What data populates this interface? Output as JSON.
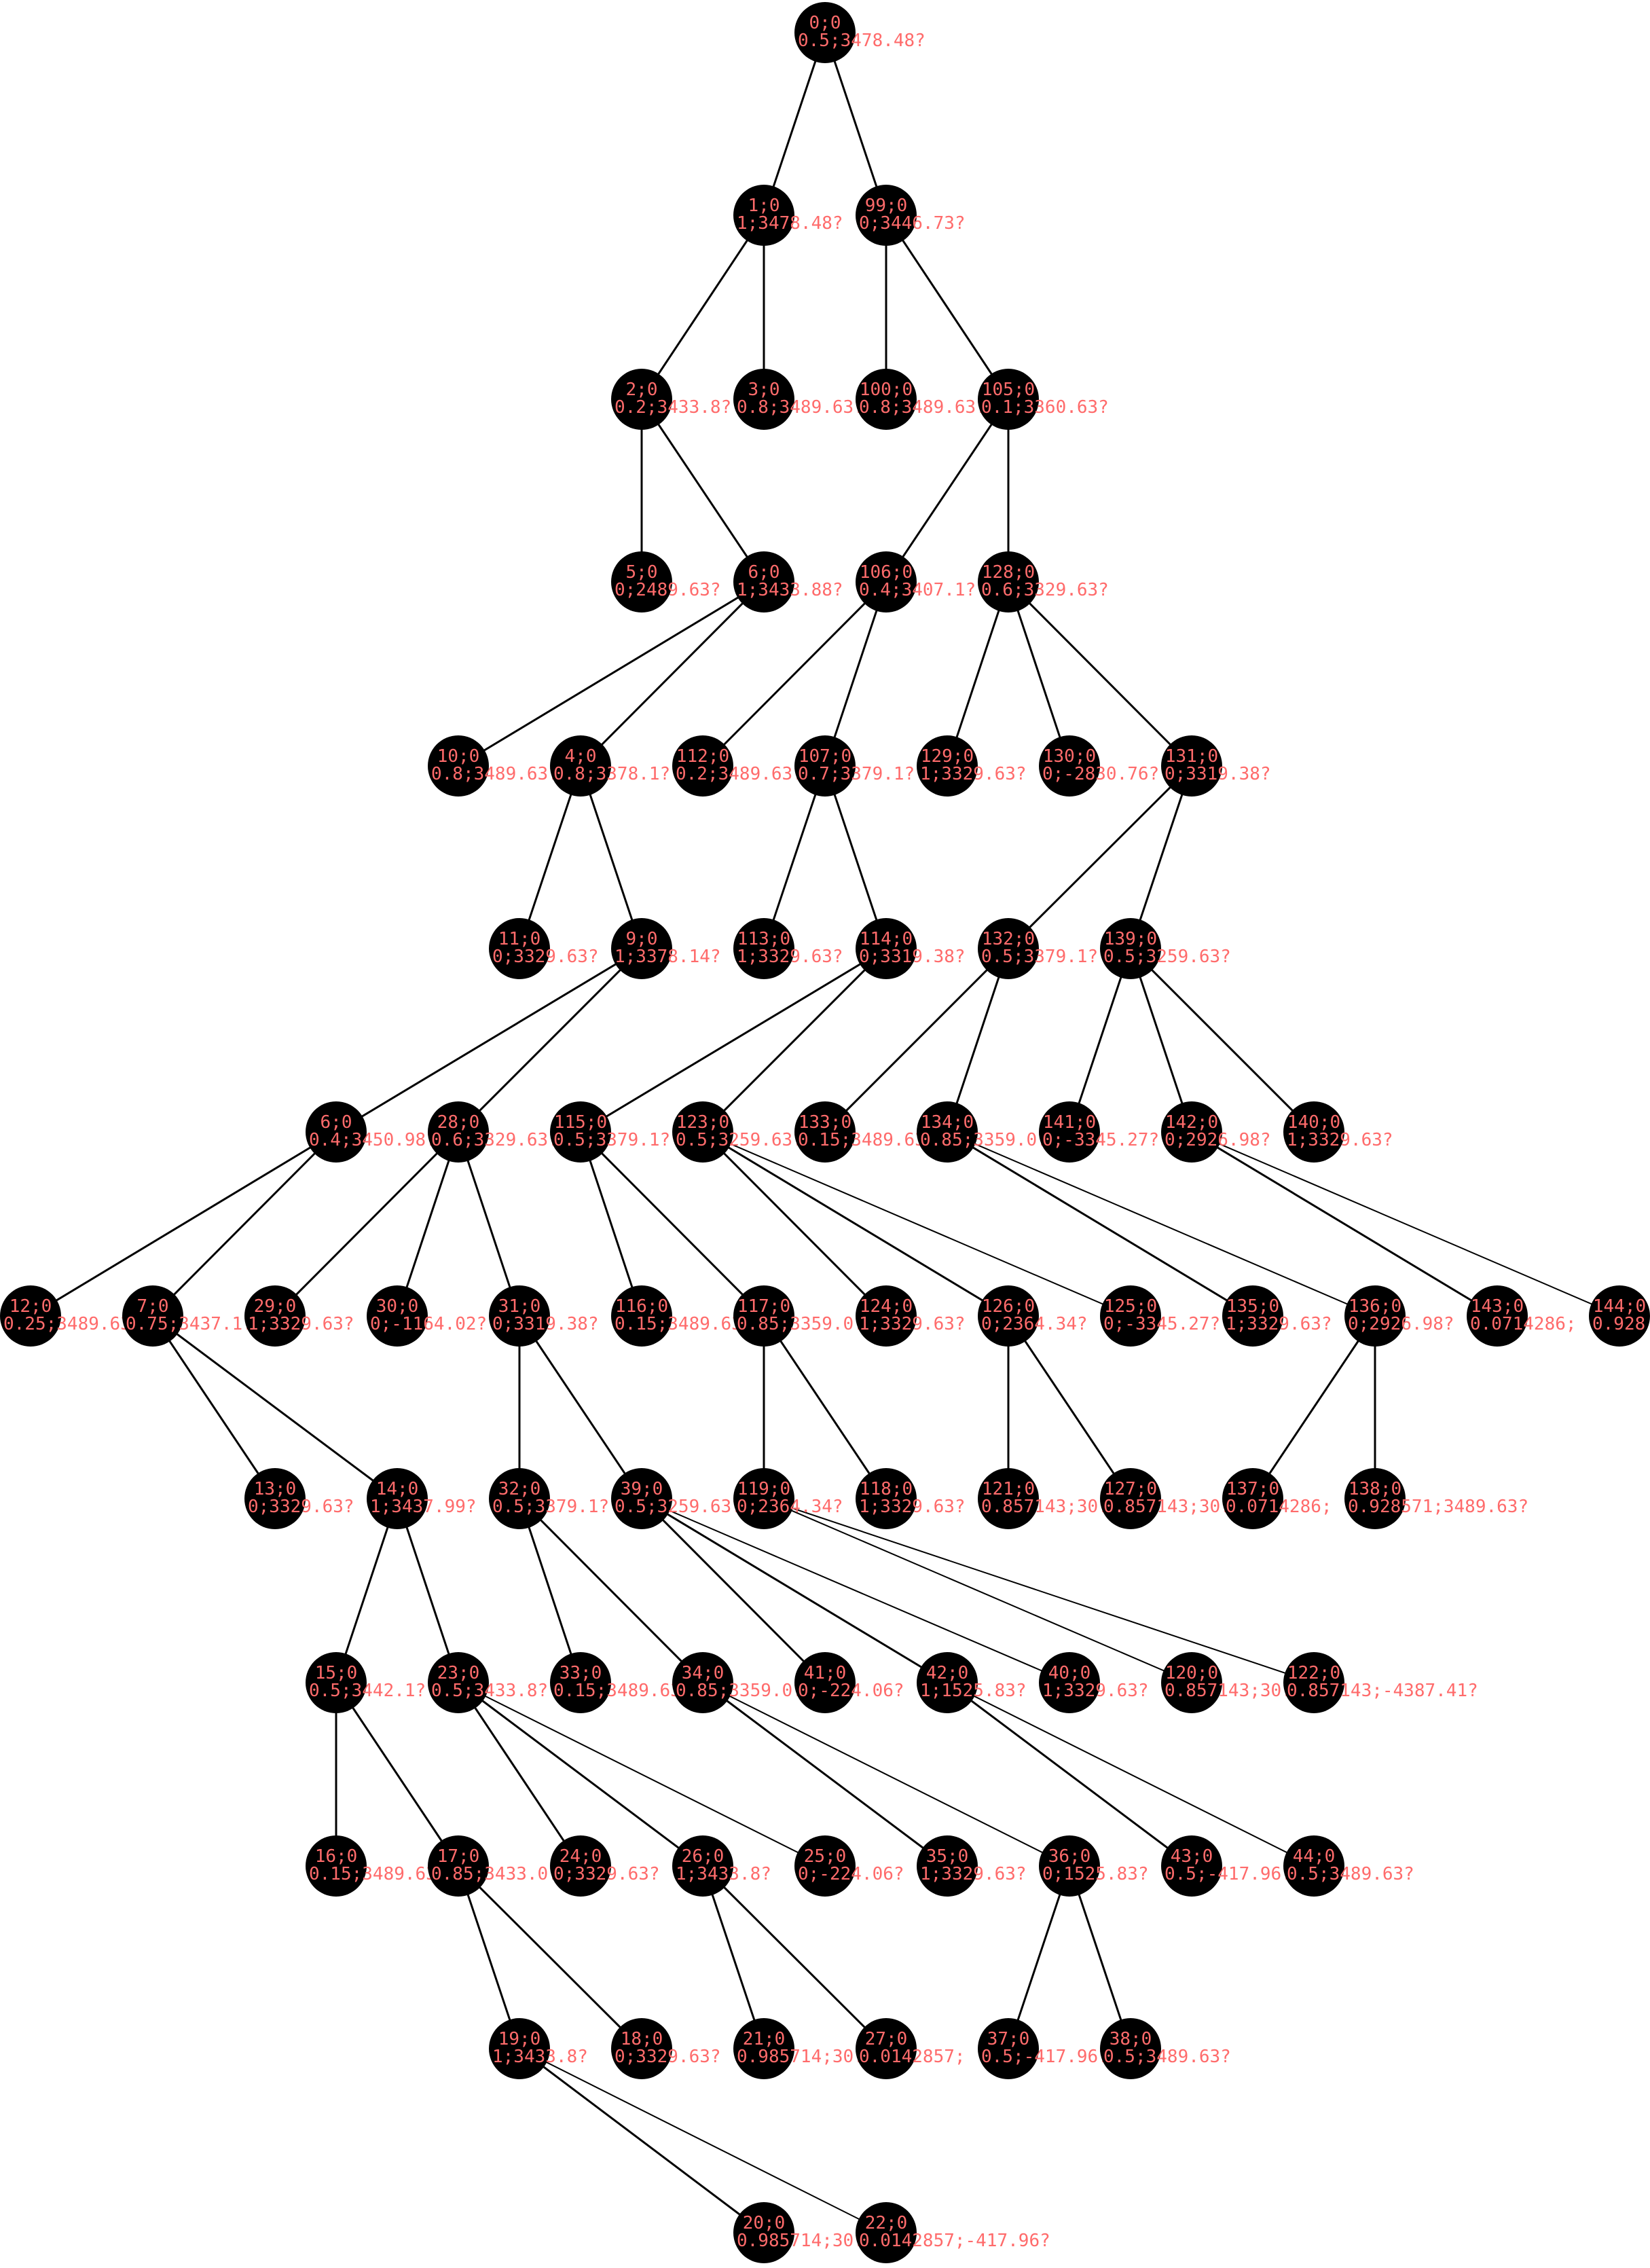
{
  "colors": {
    "background": "#ffffff",
    "node": "#000000",
    "edge": "#000000",
    "label": "#ff6b6b"
  },
  "nodes": [
    {
      "id": "n0",
      "l1": "0;0",
      "l2": "0.5;3478.48?"
    },
    {
      "id": "n1",
      "l1": "1;0",
      "l2": "1;3478.48?"
    },
    {
      "id": "n2",
      "l1": "99;0",
      "l2": "0;3446.73?"
    },
    {
      "id": "n3",
      "l1": "2;0",
      "l2": "0.2;3433.8?"
    },
    {
      "id": "n4",
      "l1": "3;0",
      "l2": "0.8;3489.63?"
    },
    {
      "id": "n5",
      "l1": "100;0",
      "l2": "0.8;3489.63?"
    },
    {
      "id": "n6",
      "l1": "105;0",
      "l2": "0.1;3360.63?"
    },
    {
      "id": "n7",
      "l1": "5;0",
      "l2": "0;2489.63?"
    },
    {
      "id": "n8",
      "l1": "6;0",
      "l2": "1;3433.88?"
    },
    {
      "id": "n9",
      "l1": "106;0",
      "l2": "0.4;3407.1?"
    },
    {
      "id": "n10",
      "l1": "128;0",
      "l2": "0.6;3329.63?"
    },
    {
      "id": "n11",
      "l1": "10;0",
      "l2": "0.8;3489.63?"
    },
    {
      "id": "n12",
      "l1": "4;0",
      "l2": "0.8;3378.1?"
    },
    {
      "id": "n13",
      "l1": "112;0",
      "l2": "0.2;3489.63?"
    },
    {
      "id": "n14",
      "l1": "107;0",
      "l2": "0.7;3379.1?"
    },
    {
      "id": "n15",
      "l1": "129;0",
      "l2": "1;3329.63?"
    },
    {
      "id": "n16",
      "l1": "130;0",
      "l2": "0;-2830.76?"
    },
    {
      "id": "n17",
      "l1": "131;0",
      "l2": "0;3319.38?"
    },
    {
      "id": "n18",
      "l1": "11;0",
      "l2": "0;3329.63?"
    },
    {
      "id": "n19",
      "l1": "9;0",
      "l2": "1;3378.14?"
    },
    {
      "id": "n20",
      "l1": "113;0",
      "l2": "1;3329.63?"
    },
    {
      "id": "n21",
      "l1": "114;0",
      "l2": "0;3319.38?"
    },
    {
      "id": "n22",
      "l1": "132;0",
      "l2": "0.5;3379.1?"
    },
    {
      "id": "n23",
      "l1": "139;0",
      "l2": "0.5;3259.63?"
    },
    {
      "id": "n24",
      "l1": "6;0",
      "l2": "0.4;3450.98?"
    },
    {
      "id": "n25",
      "l1": "28;0",
      "l2": "0.6;3329.63?"
    },
    {
      "id": "n26",
      "l1": "115;0",
      "l2": "0.5;3379.1?"
    },
    {
      "id": "n27",
      "l1": "123;0",
      "l2": "0.5;3259.63?"
    },
    {
      "id": "n28",
      "l1": "133;0",
      "l2": "0.15;3489.63?"
    },
    {
      "id": "n29",
      "l1": "134;0",
      "l2": "0.85;3359.0?"
    },
    {
      "id": "n30",
      "l1": "141;0",
      "l2": "0;-3345.27?"
    },
    {
      "id": "n31",
      "l1": "142;0",
      "l2": "0;2926.98?"
    },
    {
      "id": "n32",
      "l1": "140;0",
      "l2": "1;3329.63?"
    },
    {
      "id": "n33",
      "l1": "12;0",
      "l2": "0.25;3489.63?"
    },
    {
      "id": "n34",
      "l1": "7;0",
      "l2": "0.75;3437.1?"
    },
    {
      "id": "n35",
      "l1": "29;0",
      "l2": "1;3329.63?"
    },
    {
      "id": "n36",
      "l1": "30;0",
      "l2": "0;-1164.02?"
    },
    {
      "id": "n37",
      "l1": "31;0",
      "l2": "0;3319.38?"
    },
    {
      "id": "n38",
      "l1": "116;0",
      "l2": "0.15;3489.63?"
    },
    {
      "id": "n39",
      "l1": "117;0",
      "l2": "0.85;3359.0?"
    },
    {
      "id": "n40",
      "l1": "124;0",
      "l2": "1;3329.63?"
    },
    {
      "id": "n41",
      "l1": "126;0",
      "l2": "0;2364.34?"
    },
    {
      "id": "n42",
      "l1": "125;0",
      "l2": "0;-3345.27?"
    },
    {
      "id": "n43",
      "l1": "135;0",
      "l2": "1;3329.63?"
    },
    {
      "id": "n44",
      "l1": "136;0",
      "l2": "0;2926.98?"
    },
    {
      "id": "n45",
      "l1": "143;0",
      "l2": "0.0714286;"
    },
    {
      "id": "n46",
      "l1": "144;0",
      "l2": "0.928"
    },
    {
      "id": "n47",
      "l1": "13;0",
      "l2": "0;3329.63?"
    },
    {
      "id": "n48",
      "l1": "14;0",
      "l2": "1;3437.99?"
    },
    {
      "id": "n49",
      "l1": "32;0",
      "l2": "0.5;3379.1?"
    },
    {
      "id": "n50",
      "l1": "39;0",
      "l2": "0.5;3259.63?"
    },
    {
      "id": "n51",
      "l1": "119;0",
      "l2": "0;2364.34?"
    },
    {
      "id": "n52",
      "l1": "118;0",
      "l2": "1;3329.63?"
    },
    {
      "id": "n53",
      "l1": "121;0",
      "l2": "0.857143;30.1429?"
    },
    {
      "id": "n54",
      "l1": "127;0",
      "l2": "0.857143;30.1429?"
    },
    {
      "id": "n55",
      "l1": "137;0",
      "l2": "0.0714286;"
    },
    {
      "id": "n56",
      "l1": "138;0",
      "l2": "0.928571;3489.63?"
    },
    {
      "id": "n57",
      "l1": "15;0",
      "l2": "0.5;3442.1?"
    },
    {
      "id": "n58",
      "l1": "23;0",
      "l2": "0.5;3433.8?"
    },
    {
      "id": "n59",
      "l1": "33;0",
      "l2": "0.15;3489.63?"
    },
    {
      "id": "n60",
      "l1": "34;0",
      "l2": "0.85;3359.0?"
    },
    {
      "id": "n61",
      "l1": "41;0",
      "l2": "0;-224.06?"
    },
    {
      "id": "n62",
      "l1": "42;0",
      "l2": "1;1525.83?"
    },
    {
      "id": "n63",
      "l1": "40;0",
      "l2": "1;3329.63?"
    },
    {
      "id": "n64",
      "l1": "120;0",
      "l2": "0.857143;30.1429?"
    },
    {
      "id": "n65",
      "l1": "122;0",
      "l2": "0.857143;-4387.41?"
    },
    {
      "id": "n66",
      "l1": "16;0",
      "l2": "0.15;3489.63?"
    },
    {
      "id": "n67",
      "l1": "17;0",
      "l2": "0.85;3433.0?"
    },
    {
      "id": "n68",
      "l1": "24;0",
      "l2": "0;3329.63?"
    },
    {
      "id": "n69",
      "l1": "26;0",
      "l2": "1;3433.8?"
    },
    {
      "id": "n70",
      "l1": "25;0",
      "l2": "0;-224.06?"
    },
    {
      "id": "n71",
      "l1": "35;0",
      "l2": "1;3329.63?"
    },
    {
      "id": "n72",
      "l1": "36;0",
      "l2": "0;1525.83?"
    },
    {
      "id": "n73",
      "l1": "43;0",
      "l2": "0.5;-417.96?"
    },
    {
      "id": "n74",
      "l1": "44;0",
      "l2": "0.5;3489.63?"
    },
    {
      "id": "n75",
      "l1": "19;0",
      "l2": "1;3433.8?"
    },
    {
      "id": "n76",
      "l1": "18;0",
      "l2": "0;3329.63?"
    },
    {
      "id": "n77",
      "l1": "21;0",
      "l2": "0.985714;30.0143?"
    },
    {
      "id": "n78",
      "l1": "27;0",
      "l2": "0.0142857;"
    },
    {
      "id": "n79",
      "l1": "37;0",
      "l2": "0.5;-417.96?"
    },
    {
      "id": "n80",
      "l1": "38;0",
      "l2": "0.5;3489.63?"
    },
    {
      "id": "n81",
      "l1": "20;0",
      "l2": "0.985714;30.0143?"
    },
    {
      "id": "n82",
      "l1": "22;0",
      "l2": "0.0142857;-417.96?"
    }
  ]
}
